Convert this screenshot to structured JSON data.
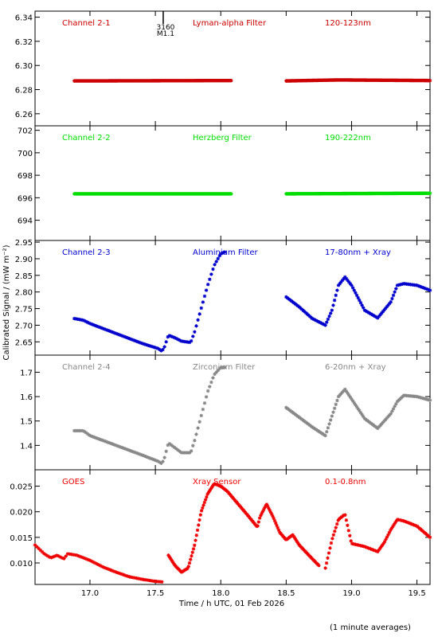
{
  "figure": {
    "ylabel": "Calibrated Signal / (mW m⁻²)",
    "xlabel": "Time / h UTC, 01 Feb 2026",
    "footnote": "(1 minute averages)",
    "marker": {
      "label1": "3160",
      "label2": "M1.1",
      "x": 17.56
    },
    "xlim": [
      16.58,
      19.6
    ],
    "xticks": [
      17.0,
      17.5,
      18.0,
      18.5,
      19.0,
      19.5
    ],
    "xtick_labels": [
      "17.0",
      "17.5",
      "18.0",
      "18.5",
      "19.0",
      "19.5"
    ]
  },
  "chart_data": [
    {
      "type": "scatter",
      "channel": "Channel 2-1",
      "filter": "Lyman-alpha Filter",
      "band": "120-123nm",
      "color": "#cc0000",
      "ylim": [
        6.25,
        6.345
      ],
      "yticks": [
        6.26,
        6.28,
        6.3,
        6.32,
        6.34
      ],
      "ytick_labels": [
        "6.26",
        "6.28",
        "6.30",
        "6.32",
        "6.34"
      ],
      "segments": [
        {
          "x": [
            16.88,
            18.08
          ],
          "y": [
            6.2872,
            6.2875
          ]
        },
        {
          "x": [
            18.5,
            18.9,
            19.6
          ],
          "y": [
            6.2872,
            6.288,
            6.2875
          ]
        }
      ]
    },
    {
      "type": "scatter",
      "channel": "Channel 2-2",
      "filter": "Herzberg Filter",
      "band": "190-222nm",
      "color": "#00dd00",
      "ylim": [
        692.2,
        702.4
      ],
      "yticks": [
        694,
        696,
        698,
        700,
        702
      ],
      "ytick_labels": [
        "694",
        "696",
        "698",
        "700",
        "702"
      ],
      "segments": [
        {
          "x": [
            16.88,
            18.08
          ],
          "y": [
            696.35,
            696.35
          ]
        },
        {
          "x": [
            18.5,
            19.6
          ],
          "y": [
            696.35,
            696.4
          ]
        }
      ]
    },
    {
      "type": "scatter",
      "channel": "Channel 2-3",
      "filter": "Aluminium Filter",
      "band": "17-80nm + Xray",
      "color": "#0000cc",
      "ylim": [
        2.61,
        2.955
      ],
      "yticks": [
        2.65,
        2.7,
        2.75,
        2.8,
        2.85,
        2.9,
        2.95
      ],
      "ytick_labels": [
        "2.65",
        "2.70",
        "2.75",
        "2.80",
        "2.85",
        "2.90",
        "2.95"
      ],
      "segments": [
        {
          "x": [
            16.88,
            16.95,
            17.0,
            17.2,
            17.4,
            17.52,
            17.55,
            17.57,
            17.6,
            17.65,
            17.7,
            17.77,
            17.8,
            17.85,
            17.9,
            17.95,
            18.0,
            18.03
          ],
          "y": [
            2.72,
            2.715,
            2.705,
            2.675,
            2.645,
            2.63,
            2.622,
            2.635,
            2.67,
            2.662,
            2.652,
            2.648,
            2.68,
            2.75,
            2.82,
            2.88,
            2.915,
            2.92
          ]
        },
        {
          "x": [
            18.5,
            18.6,
            18.7,
            18.8,
            18.85,
            18.9,
            18.95,
            19.0,
            19.1,
            19.2,
            19.3,
            19.35,
            19.4,
            19.5,
            19.6
          ],
          "y": [
            2.785,
            2.755,
            2.72,
            2.7,
            2.745,
            2.82,
            2.845,
            2.82,
            2.745,
            2.722,
            2.77,
            2.82,
            2.825,
            2.82,
            2.805
          ]
        }
      ]
    },
    {
      "type": "scatter",
      "channel": "Channel 2-4",
      "filter": "Zirconium Filter",
      "band": "6-20nm + Xray",
      "color": "#888888",
      "ylim": [
        1.3,
        1.77
      ],
      "yticks": [
        1.4,
        1.5,
        1.6,
        1.7
      ],
      "ytick_labels": [
        "1.4",
        "1.5",
        "1.6",
        "1.7"
      ],
      "segments": [
        {
          "x": [
            16.88,
            16.95,
            17.0,
            17.2,
            17.4,
            17.52,
            17.55,
            17.57,
            17.6,
            17.65,
            17.7,
            17.77,
            17.8,
            17.85,
            17.9,
            17.95,
            18.0,
            18.03
          ],
          "y": [
            1.46,
            1.46,
            1.44,
            1.4,
            1.36,
            1.335,
            1.325,
            1.35,
            1.41,
            1.39,
            1.37,
            1.37,
            1.42,
            1.52,
            1.62,
            1.69,
            1.72,
            1.72
          ]
        },
        {
          "x": [
            18.5,
            18.6,
            18.7,
            18.8,
            18.85,
            18.9,
            18.95,
            19.0,
            19.1,
            19.2,
            19.3,
            19.35,
            19.4,
            19.5,
            19.6
          ],
          "y": [
            1.555,
            1.515,
            1.475,
            1.44,
            1.52,
            1.6,
            1.63,
            1.59,
            1.51,
            1.47,
            1.53,
            1.58,
            1.605,
            1.6,
            1.585
          ]
        }
      ]
    },
    {
      "type": "scatter",
      "channel": "GOES",
      "filter": "Xray Sensor",
      "band": "0.1-0.8nm",
      "color": "#ee0000",
      "ylim": [
        0.0058,
        0.0282
      ],
      "yticks": [
        0.01,
        0.015,
        0.02,
        0.025
      ],
      "ytick_labels": [
        "0.010",
        "0.015",
        "0.020",
        "0.025"
      ],
      "segments": [
        {
          "x": [
            16.58,
            16.65,
            16.7,
            16.75,
            16.8,
            16.83,
            16.9,
            17.0,
            17.1,
            17.2,
            17.3,
            17.4,
            17.5,
            17.55
          ],
          "y": [
            0.0135,
            0.0118,
            0.011,
            0.0115,
            0.0108,
            0.0118,
            0.0115,
            0.0105,
            0.0092,
            0.0082,
            0.0073,
            0.0068,
            0.0064,
            0.0063
          ]
        },
        {
          "x": [
            17.6,
            17.65,
            17.7,
            17.75,
            17.8,
            17.85,
            17.9,
            17.95,
            18.0,
            18.05,
            18.1,
            18.2,
            18.28,
            18.3,
            18.35,
            18.4,
            18.45,
            18.5,
            18.55,
            18.6,
            18.7,
            18.75
          ],
          "y": [
            0.0115,
            0.0095,
            0.0082,
            0.009,
            0.0135,
            0.02,
            0.0235,
            0.0255,
            0.025,
            0.024,
            0.0225,
            0.0195,
            0.017,
            0.019,
            0.0215,
            0.019,
            0.016,
            0.0145,
            0.0155,
            0.0135,
            0.0108,
            0.0095
          ]
        },
        {
          "x": [
            18.8,
            18.85,
            18.9,
            18.95,
            19.0,
            19.1,
            19.2,
            19.25,
            19.3,
            19.35,
            19.4,
            19.5,
            19.6
          ],
          "y": [
            0.009,
            0.0145,
            0.0185,
            0.0195,
            0.0138,
            0.0132,
            0.0122,
            0.014,
            0.0165,
            0.0185,
            0.0182,
            0.0172,
            0.015
          ]
        }
      ]
    }
  ]
}
